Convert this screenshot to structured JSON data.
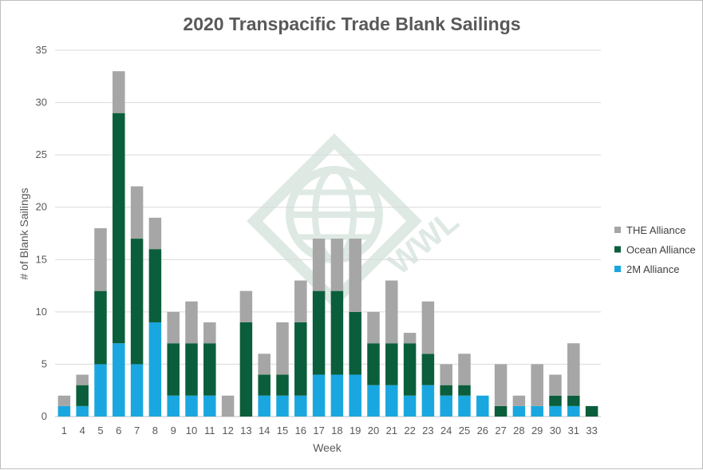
{
  "chart_data": {
    "type": "bar",
    "stacked": true,
    "title": "2020 Transpacific Trade Blank Sailings",
    "xlabel": "Week",
    "ylabel": "# of Blank Sailings",
    "ylim": [
      0,
      35
    ],
    "yticks": [
      "0",
      "5",
      "10",
      "15",
      "20",
      "25",
      "30",
      "35"
    ],
    "grid": true,
    "legend_position": "right",
    "categories": [
      "1",
      "4",
      "5",
      "6",
      "7",
      "8",
      "9",
      "10",
      "11",
      "12",
      "13",
      "14",
      "15",
      "16",
      "17",
      "18",
      "19",
      "20",
      "21",
      "22",
      "23",
      "24",
      "25",
      "26",
      "27",
      "28",
      "29",
      "30",
      "31",
      "33"
    ],
    "series": [
      {
        "name": "2M Alliance",
        "color": "#1aa7e0",
        "values": [
          1,
          1,
          5,
          7,
          5,
          9,
          2,
          2,
          2,
          0,
          0,
          2,
          2,
          2,
          4,
          4,
          4,
          3,
          3,
          2,
          3,
          2,
          2,
          2,
          0,
          1,
          1,
          1,
          1,
          0
        ]
      },
      {
        "name": "Ocean Alliance",
        "color": "#0b5e3b",
        "values": [
          0,
          2,
          7,
          22,
          12,
          7,
          5,
          5,
          5,
          0,
          9,
          2,
          2,
          7,
          8,
          8,
          6,
          4,
          4,
          5,
          3,
          1,
          1,
          0,
          1,
          0,
          0,
          1,
          1,
          1
        ]
      },
      {
        "name": "THE Alliance",
        "color": "#a6a6a6",
        "values": [
          1,
          1,
          6,
          4,
          5,
          3,
          3,
          4,
          2,
          2,
          3,
          2,
          5,
          4,
          5,
          5,
          7,
          3,
          6,
          1,
          5,
          2,
          3,
          0,
          4,
          1,
          4,
          2,
          5,
          0
        ]
      }
    ],
    "legend_order": [
      "THE Alliance",
      "Ocean Alliance",
      "2M Alliance"
    ]
  },
  "watermark": {
    "text": "WWL"
  }
}
